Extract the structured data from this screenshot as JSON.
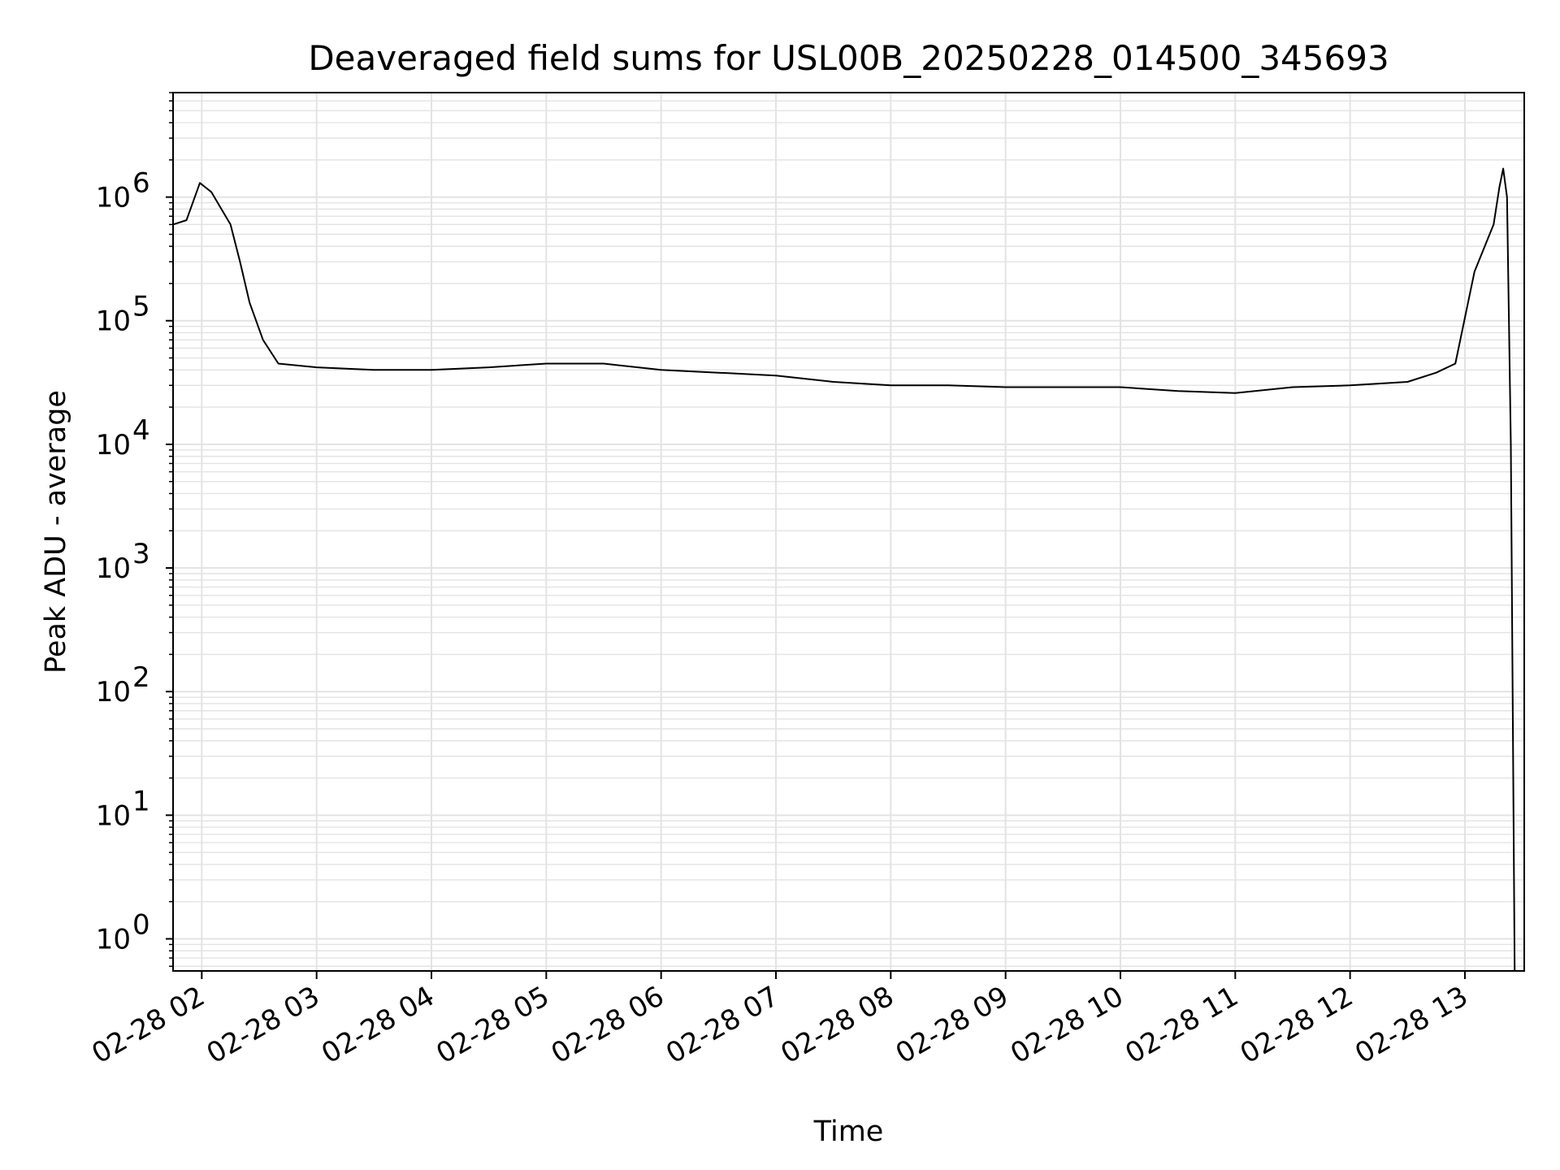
{
  "chart_data": {
    "type": "line",
    "title": "Deaveraged field sums for USL00B_20250228_014500_345693",
    "xlabel": "Time",
    "ylabel": "Peak ADU - average",
    "yscale": "log",
    "ylim": [
      0.55,
      7000000
    ],
    "xlim": [
      "2025-02-28 01:45",
      "2025-02-28 13:31"
    ],
    "grid": true,
    "line_color": "#000000",
    "grid_color": "#e3e3e3",
    "x_ticks": [
      {
        "x": "2025-02-28 02:00",
        "label": "02-28 02"
      },
      {
        "x": "2025-02-28 03:00",
        "label": "02-28 03"
      },
      {
        "x": "2025-02-28 04:00",
        "label": "02-28 04"
      },
      {
        "x": "2025-02-28 05:00",
        "label": "02-28 05"
      },
      {
        "x": "2025-02-28 06:00",
        "label": "02-28 06"
      },
      {
        "x": "2025-02-28 07:00",
        "label": "02-28 07"
      },
      {
        "x": "2025-02-28 08:00",
        "label": "02-28 08"
      },
      {
        "x": "2025-02-28 09:00",
        "label": "02-28 09"
      },
      {
        "x": "2025-02-28 10:00",
        "label": "02-28 10"
      },
      {
        "x": "2025-02-28 11:00",
        "label": "02-28 11"
      },
      {
        "x": "2025-02-28 12:00",
        "label": "02-28 12"
      },
      {
        "x": "2025-02-28 13:00",
        "label": "02-28 13"
      }
    ],
    "y_ticks": [
      {
        "value": 1,
        "base": "10",
        "exp": "0"
      },
      {
        "value": 10,
        "base": "10",
        "exp": "1"
      },
      {
        "value": 100,
        "base": "10",
        "exp": "2"
      },
      {
        "value": 1000,
        "base": "10",
        "exp": "3"
      },
      {
        "value": 10000,
        "base": "10",
        "exp": "4"
      },
      {
        "value": 100000,
        "base": "10",
        "exp": "5"
      },
      {
        "value": 1000000,
        "base": "10",
        "exp": "6"
      }
    ],
    "series": [
      {
        "x": [
          "2025-02-28 01:45",
          "2025-02-28 01:52",
          "2025-02-28 01:59",
          "2025-02-28 02:05",
          "2025-02-28 02:15",
          "2025-02-28 02:20",
          "2025-02-28 02:25",
          "2025-02-28 02:32",
          "2025-02-28 02:40",
          "2025-02-28 03:00",
          "2025-02-28 03:30",
          "2025-02-28 04:00",
          "2025-02-28 04:30",
          "2025-02-28 05:00",
          "2025-02-28 05:30",
          "2025-02-28 06:00",
          "2025-02-28 06:30",
          "2025-02-28 07:00",
          "2025-02-28 07:30",
          "2025-02-28 08:00",
          "2025-02-28 08:30",
          "2025-02-28 09:00",
          "2025-02-28 09:30",
          "2025-02-28 10:00",
          "2025-02-28 10:30",
          "2025-02-28 11:00",
          "2025-02-28 11:30",
          "2025-02-28 12:00",
          "2025-02-28 12:30",
          "2025-02-28 12:45",
          "2025-02-28 12:55",
          "2025-02-28 13:05",
          "2025-02-28 13:15",
          "2025-02-28 13:18",
          "2025-02-28 13:20",
          "2025-02-28 13:22",
          "2025-02-28 13:24",
          "2025-02-28 13:26"
        ],
        "y": [
          600000,
          650000,
          1300000,
          1100000,
          600000,
          300000,
          140000,
          70000,
          45000,
          42000,
          40000,
          40000,
          42000,
          45000,
          45000,
          40000,
          38000,
          36000,
          32000,
          30000,
          30000,
          29000,
          29000,
          29000,
          27000,
          26000,
          29000,
          30000,
          32000,
          38000,
          45000,
          250000,
          600000,
          1200000,
          1700000,
          1000000,
          10000,
          0.55
        ]
      }
    ]
  }
}
